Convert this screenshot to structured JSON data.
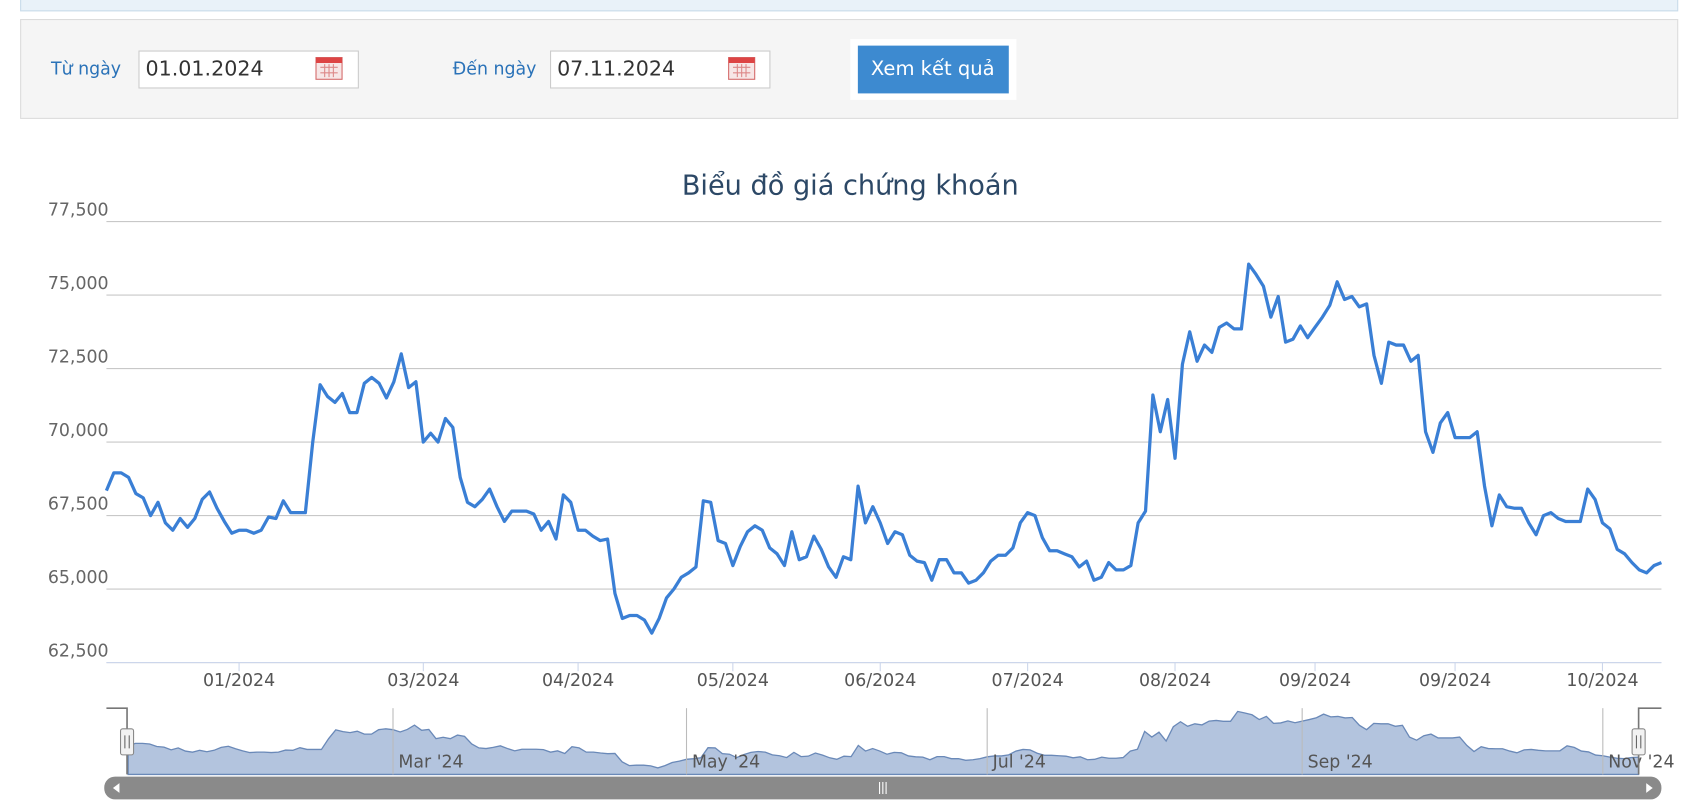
{
  "form": {
    "from_label": "Từ ngày",
    "from_value": "01.01.2024",
    "to_label": "Đến ngày",
    "to_value": "07.11.2024",
    "button": "Xem kết quả"
  },
  "chart_data": {
    "type": "line",
    "title": "Biểu đồ giá chứng khoán",
    "color": "#3a7fd5",
    "grid": true,
    "values": [
      68350,
      68950,
      68950,
      68800,
      68250,
      68100,
      67500,
      67950,
      67250,
      67000,
      67400,
      67100,
      67400,
      68050,
      68300,
      67750,
      67300,
      66900,
      67000,
      67000,
      66900,
      67000,
      67450,
      67400,
      68000,
      67600,
      67600,
      67600,
      70000,
      71950,
      71550,
      71350,
      71650,
      71000,
      71000,
      72000,
      72200,
      72000,
      71500,
      72050,
      73000,
      71850,
      72050,
      70000,
      70300,
      70000,
      70800,
      70500,
      68800,
      67950,
      67800,
      68050,
      68400,
      67800,
      67300,
      67650,
      67650,
      67650,
      67550,
      67000,
      67300,
      66700,
      68200,
      67950,
      67000,
      67000,
      66800,
      66650,
      66700,
      64850,
      64000,
      64100,
      64100,
      63950,
      63500,
      64000,
      64700,
      65000,
      65400,
      65550,
      65750,
      68000,
      67950,
      66650,
      66550,
      65800,
      66450,
      66950,
      67150,
      67000,
      66400,
      66200,
      65800,
      66950,
      66000,
      66100,
      66800,
      66350,
      65750,
      65400,
      66100,
      66000,
      68500,
      67250,
      67800,
      67250,
      66550,
      66950,
      66850,
      66150,
      65950,
      65900,
      65300,
      66000,
      66000,
      65550,
      65550,
      65200,
      65300,
      65550,
      65950,
      66150,
      66150,
      66400,
      67250,
      67600,
      67500,
      66750,
      66300,
      66300,
      66200,
      66100,
      65750,
      65950,
      65300,
      65400,
      65900,
      65650,
      65650,
      65800,
      67250,
      67650,
      71600,
      70350,
      71450,
      69450,
      72650,
      73750,
      72750,
      73300,
      73050,
      73900,
      74050,
      73850,
      73850,
      76050,
      75700,
      75300,
      74250,
      74950,
      73400,
      73500,
      73950,
      73550,
      73900,
      74250,
      74650,
      75450,
      74850,
      74950,
      74600,
      74700,
      72950,
      72000,
      73400,
      73300,
      73300,
      72750,
      72950,
      70350,
      69650,
      70650,
      71000,
      70150,
      70150,
      70150,
      70350,
      68500,
      67150,
      68200,
      67800,
      67750,
      67750,
      67250,
      66850,
      67500,
      67600,
      67400,
      67300,
      67300,
      67300,
      68400,
      68050,
      67250,
      67050,
      66350,
      66200,
      65900,
      65650,
      65550,
      65800,
      65900
    ],
    "xlim": [
      0,
      211
    ],
    "xticks": [
      {
        "value": 18,
        "label": "01/2024"
      },
      {
        "value": 43,
        "label": "03/2024"
      },
      {
        "value": 64,
        "label": "04/2024"
      },
      {
        "value": 85,
        "label": "05/2024"
      },
      {
        "value": 105,
        "label": "06/2024"
      },
      {
        "value": 125,
        "label": "07/2024"
      },
      {
        "value": 145,
        "label": "08/2024"
      },
      {
        "value": 164,
        "label": "09/2024"
      },
      {
        "value": 183,
        "label": "09/2024"
      },
      {
        "value": 203,
        "label": "10/2024"
      }
    ],
    "ylim": [
      62500,
      77500
    ],
    "yticks": [
      {
        "value": 62500,
        "label": "62,500"
      },
      {
        "value": 65000,
        "label": "65,000"
      },
      {
        "value": 67500,
        "label": "67,500"
      },
      {
        "value": 70000,
        "label": "70,000"
      },
      {
        "value": 72500,
        "label": "72,500"
      },
      {
        "value": 75000,
        "label": "75,000"
      },
      {
        "value": 77500,
        "label": "77,500"
      }
    ],
    "navigator": {
      "ticks": [
        {
          "value": 37,
          "label": "Mar '24"
        },
        {
          "value": 78,
          "label": "May '24"
        },
        {
          "value": 120,
          "label": "Jul '24"
        },
        {
          "value": 164,
          "label": "Sep '24"
        },
        {
          "value": 206,
          "label": "Nov '24"
        }
      ]
    }
  }
}
